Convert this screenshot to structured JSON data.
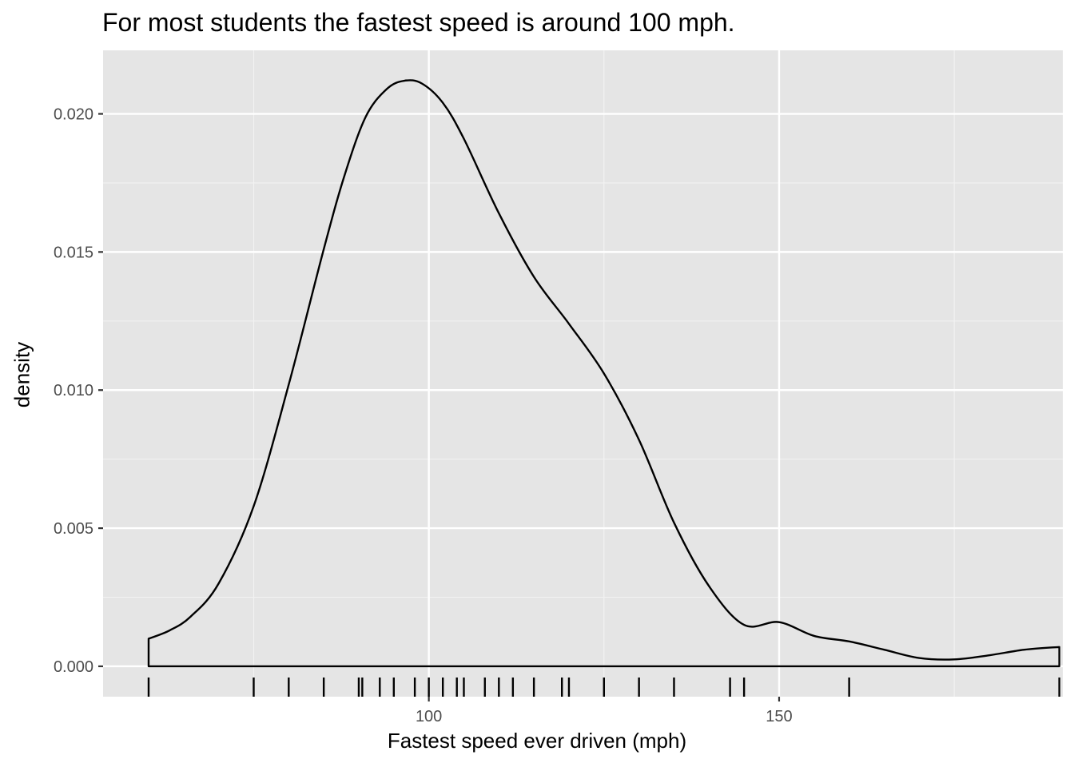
{
  "chart_data": {
    "type": "area",
    "title": "For most students the fastest speed is around 100 mph.",
    "xlabel": "Fastest speed ever driven (mph)",
    "ylabel": "density",
    "xlim": [
      53.5,
      190.5
    ],
    "ylim": [
      -0.0011,
      0.0223
    ],
    "x_ticks": [
      100,
      150
    ],
    "y_ticks": [
      0.0,
      0.005,
      0.01,
      0.015,
      0.02
    ],
    "y_tick_labels": [
      "0.000",
      "0.005",
      "0.010",
      "0.015",
      "0.020"
    ],
    "x_minor_ticks": [
      75,
      125,
      175
    ],
    "y_minor_ticks": [
      0.0025,
      0.0075,
      0.0125,
      0.0175
    ],
    "grid": true,
    "density_curve": {
      "x": [
        60,
        63,
        66,
        70,
        75,
        80,
        85,
        88,
        91,
        94,
        96.5,
        99,
        102,
        105,
        110,
        115,
        120,
        125,
        130,
        135,
        140,
        145,
        150,
        155,
        160,
        165,
        170,
        175,
        180,
        185,
        190
      ],
      "y": [
        0.001,
        0.0013,
        0.0018,
        0.003,
        0.0058,
        0.0102,
        0.0151,
        0.0178,
        0.0199,
        0.0209,
        0.0212,
        0.0211,
        0.0204,
        0.0191,
        0.0164,
        0.0141,
        0.0124,
        0.0106,
        0.0082,
        0.0052,
        0.0029,
        0.0015,
        0.0016,
        0.0011,
        0.0009,
        0.0006,
        0.0003,
        0.00025,
        0.0004,
        0.0006,
        0.0007
      ]
    },
    "rug": [
      60,
      75,
      80,
      85,
      90,
      90.5,
      93,
      95,
      98,
      100,
      102,
      104,
      105,
      108,
      110,
      112,
      115,
      119,
      120,
      125,
      130,
      135,
      143,
      145,
      160,
      190
    ],
    "colors": {
      "panel_background": "#e5e5e5",
      "grid_major": "#ffffff",
      "grid_minor": "#f2f2f2",
      "line": "#000000",
      "tick_text": "#4d4d4d"
    }
  }
}
